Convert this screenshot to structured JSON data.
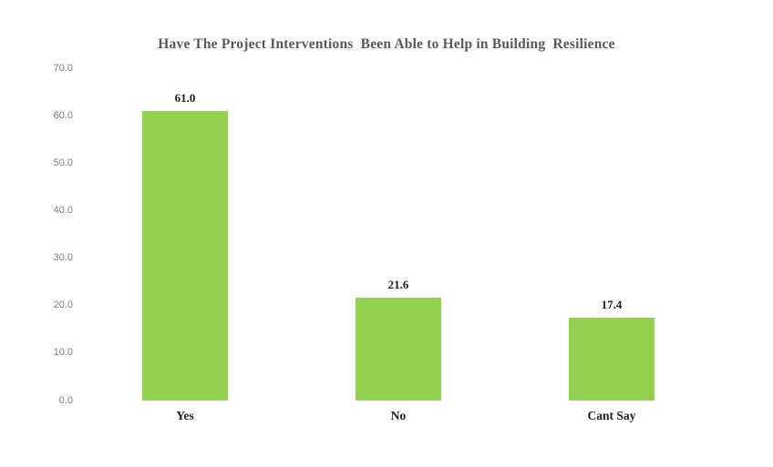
{
  "chart_data": {
    "type": "bar",
    "title": "Have The Project Interventions  Been Able to Help in Building  Resilience",
    "categories": [
      "Yes",
      "No",
      "Cant Say"
    ],
    "values": [
      61.0,
      21.6,
      17.4
    ],
    "value_labels": [
      "61.0",
      "21.6",
      "17.4"
    ],
    "y_ticks": [
      "70.0",
      "60.0",
      "50.0",
      "40.0",
      "30.0",
      "20.0",
      "10.0",
      "0.0"
    ],
    "ylim": [
      0,
      70
    ],
    "xlabel": "",
    "ylabel": "",
    "grid": false,
    "legend_position": "none",
    "colors": {
      "bar": "#92D050",
      "title": "#595959",
      "axis_ticks": "#7F7F7F",
      "data_labels": "#1F1F1F",
      "background": "#FFFFFF"
    }
  }
}
